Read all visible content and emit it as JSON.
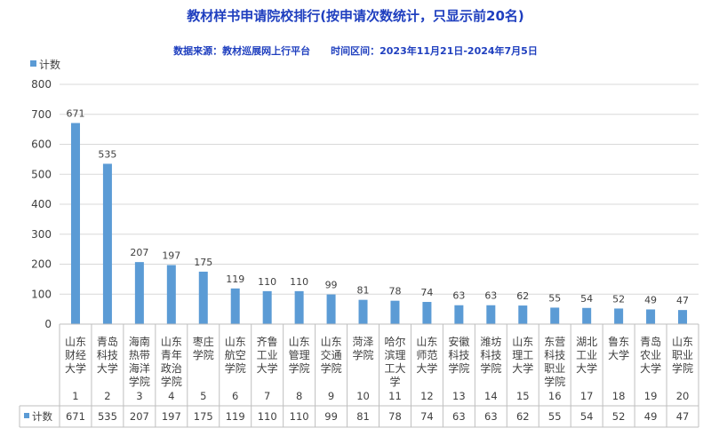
{
  "chart_data": {
    "type": "bar",
    "title": "教材样书申请院校排行(按申请次数统计，只显示前20名)",
    "subtitle": "数据来源：教材巡展网上行平台      时间区间：2023年11月21日-2024年7月5日",
    "series_name": "计数",
    "ylim": [
      0,
      800
    ],
    "yticks": [
      0,
      100,
      200,
      300,
      400,
      500,
      600,
      700,
      800
    ],
    "grid": true,
    "legend": "top-left",
    "color": "#5b9bd5",
    "x": [
      "1",
      "2",
      "3",
      "4",
      "5",
      "6",
      "7",
      "8",
      "9",
      "10",
      "11",
      "12",
      "13",
      "14",
      "15",
      "16",
      "17",
      "18",
      "19",
      "20"
    ],
    "categories": [
      [
        "山东",
        "财经",
        "大学"
      ],
      [
        "青岛",
        "科技",
        "大学"
      ],
      [
        "海南",
        "热带",
        "海洋",
        "学院"
      ],
      [
        "山东",
        "青年",
        "政治",
        "学院"
      ],
      [
        "枣庄",
        "学院"
      ],
      [
        "山东",
        "航空",
        "学院"
      ],
      [
        "齐鲁",
        "工业",
        "大学"
      ],
      [
        "山东",
        "管理",
        "学院"
      ],
      [
        "山东",
        "交通",
        "学院"
      ],
      [
        "菏泽",
        "学院"
      ],
      [
        "哈尔",
        "滨理",
        "工大",
        "学"
      ],
      [
        "山东",
        "师范",
        "大学"
      ],
      [
        "安徽",
        "科技",
        "学院"
      ],
      [
        "潍坊",
        "科技",
        "学院"
      ],
      [
        "山东",
        "理工",
        "大学"
      ],
      [
        "东营",
        "科技",
        "职业",
        "学院"
      ],
      [
        "湖北",
        "工业",
        "大学"
      ],
      [
        "鲁东",
        "大学"
      ],
      [
        "青岛",
        "农业",
        "大学"
      ],
      [
        "山东",
        "职业",
        "学院"
      ]
    ],
    "values": [
      671,
      535,
      207,
      197,
      175,
      119,
      110,
      110,
      99,
      81,
      78,
      74,
      63,
      63,
      62,
      55,
      54,
      52,
      49,
      47
    ]
  }
}
